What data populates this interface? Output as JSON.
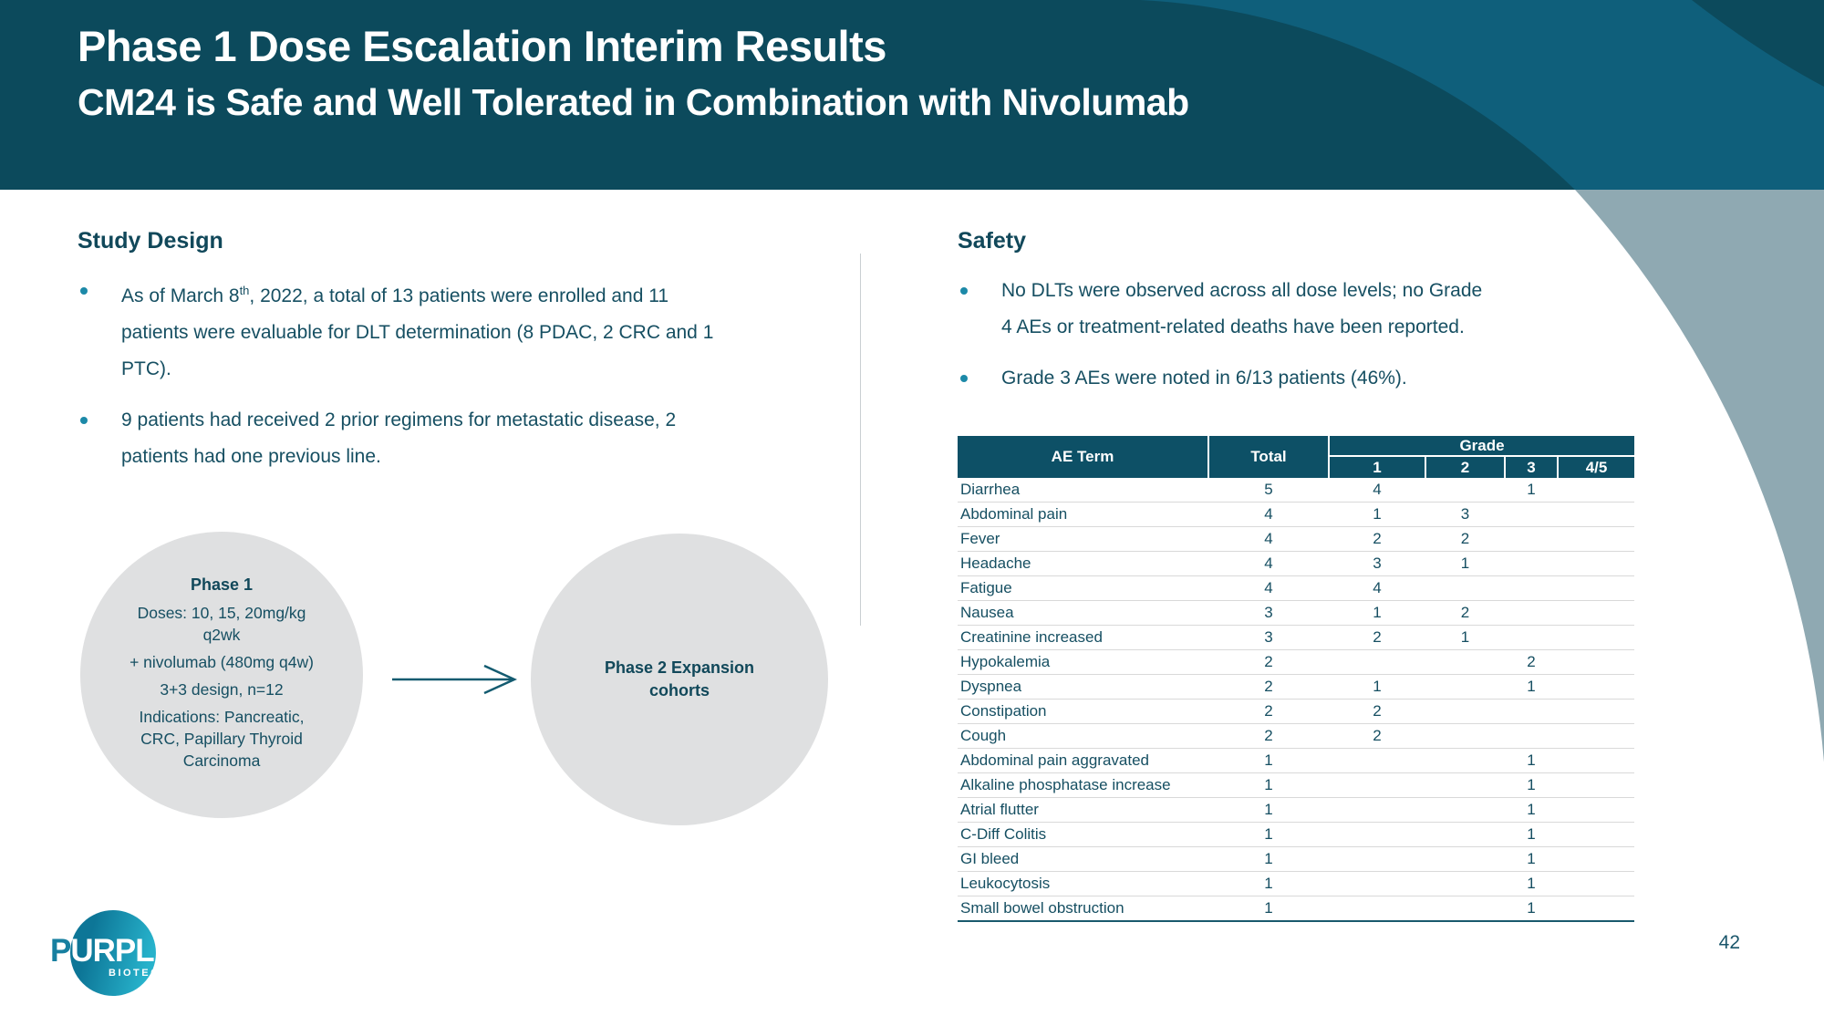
{
  "slide": {
    "title": "Phase 1 Dose Escalation Interim Results",
    "subtitle": "CM24 is Safe and Well Tolerated in Combination with Nivolumab",
    "page_number": "42"
  },
  "colors": {
    "teal-dark": "#0C4A5C",
    "teal-bright": "#0F5F7B",
    "blue-gray": "#8FA9B2",
    "text-teal": "#164F62",
    "accent-teal": "#1C89A8",
    "table-header-bg": "#0D5066",
    "circle-gray": "#DFE0E1",
    "line-gray": "#D9D9D9"
  },
  "study_design": {
    "heading": "Study Design",
    "bullet1": {
      "pre": "As of March 8",
      "sup": "th",
      "post": ", 2022, a total of 13 patients were enrolled and 11 patients were evaluable for DLT determination (8 PDAC, 2 CRC and 1 PTC)."
    },
    "bullet2": "9 patients had received 2 prior regimens for metastatic disease, 2 patients had one previous line."
  },
  "diagram": {
    "phase1": {
      "title": "Phase 1",
      "items": [
        "Doses: 10, 15, 20mg/kg q2wk",
        "+ nivolumab (480mg q4w)",
        "3+3 design, n=12",
        "Indications: Pancreatic, CRC, Papillary Thyroid Carcinoma"
      ]
    },
    "phase2": {
      "title": "Phase 2 Expansion cohorts"
    }
  },
  "safety": {
    "heading": "Safety",
    "bullet1": "No DLTs were observed across all dose levels; no Grade 4 AEs or treatment-related deaths have been reported.",
    "bullet2": "Grade 3 AEs were noted in 6/13 patients (46%).",
    "table": {
      "headers": {
        "ae_term": "AE Term",
        "total": "Total",
        "grade": "Grade",
        "grades": [
          "1",
          "2",
          "3",
          "4/5"
        ]
      },
      "rows": [
        {
          "term": "Diarrhea",
          "total": "5",
          "g1": "4",
          "g2": "",
          "g3": "1",
          "g45": ""
        },
        {
          "term": "Abdominal pain",
          "total": "4",
          "g1": "1",
          "g2": "3",
          "g3": "",
          "g45": ""
        },
        {
          "term": "Fever",
          "total": "4",
          "g1": "2",
          "g2": "2",
          "g3": "",
          "g45": ""
        },
        {
          "term": "Headache",
          "total": "4",
          "g1": "3",
          "g2": "1",
          "g3": "",
          "g45": ""
        },
        {
          "term": "Fatigue",
          "total": "4",
          "g1": "4",
          "g2": "",
          "g3": "",
          "g45": ""
        },
        {
          "term": "Nausea",
          "total": "3",
          "g1": "1",
          "g2": "2",
          "g3": "",
          "g45": ""
        },
        {
          "term": "Creatinine increased",
          "total": "3",
          "g1": "2",
          "g2": "1",
          "g3": "",
          "g45": ""
        },
        {
          "term": "Hypokalemia",
          "total": "2",
          "g1": "",
          "g2": "",
          "g3": "2",
          "g45": ""
        },
        {
          "term": "Dyspnea",
          "total": "2",
          "g1": "1",
          "g2": "",
          "g3": "1",
          "g45": ""
        },
        {
          "term": "Constipation",
          "total": "2",
          "g1": "2",
          "g2": "",
          "g3": "",
          "g45": ""
        },
        {
          "term": "Cough",
          "total": "2",
          "g1": "2",
          "g2": "",
          "g3": "",
          "g45": ""
        },
        {
          "term": "Abdominal pain aggravated",
          "total": "1",
          "g1": "",
          "g2": "",
          "g3": "1",
          "g45": ""
        },
        {
          "term": "Alkaline phosphatase increase",
          "total": "1",
          "g1": "",
          "g2": "",
          "g3": "1",
          "g45": ""
        },
        {
          "term": "Atrial flutter",
          "total": "1",
          "g1": "",
          "g2": "",
          "g3": "1",
          "g45": ""
        },
        {
          "term": "C-Diff Colitis",
          "total": "1",
          "g1": "",
          "g2": "",
          "g3": "1",
          "g45": ""
        },
        {
          "term": "GI bleed",
          "total": "1",
          "g1": "",
          "g2": "",
          "g3": "1",
          "g45": ""
        },
        {
          "term": "Leukocytosis",
          "total": "1",
          "g1": "",
          "g2": "",
          "g3": "1",
          "g45": ""
        },
        {
          "term": "Small bowel obstruction",
          "total": "1",
          "g1": "",
          "g2": "",
          "g3": "1",
          "g45": ""
        }
      ]
    }
  },
  "footer": {
    "logo_text": "PURPLE",
    "logo_first_letter": "P",
    "logo_rest": "URPLE",
    "logo_subtext": "BIOTECH"
  }
}
